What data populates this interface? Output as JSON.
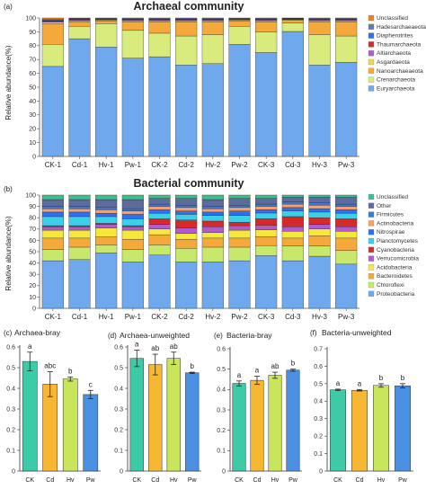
{
  "chart_data": [
    {
      "panel": "(a)",
      "type": "stacked_bar",
      "title": "Archaeal community",
      "ylabel": "Relative abundance(%)",
      "ylim": [
        0,
        100
      ],
      "yticks": [
        0,
        10,
        20,
        30,
        40,
        50,
        60,
        70,
        80,
        90,
        100
      ],
      "categories": [
        "CK-1",
        "Cd-1",
        "Hv-1",
        "Pw-1",
        "CK-2",
        "Cd-2",
        "Hv-2",
        "Pw-2",
        "CK-3",
        "Cd-3",
        "Hv-3",
        "Pw-3"
      ],
      "series": [
        {
          "name": "Euryarchaeota",
          "color": "#6fa8ec",
          "values": [
            65,
            85,
            79,
            71,
            72,
            66,
            67,
            81,
            75,
            90,
            66,
            68
          ]
        },
        {
          "name": "Crenarchaeota",
          "color": "#d8eb7c",
          "values": [
            16,
            9,
            17,
            20,
            17,
            21,
            21,
            13,
            15,
            6,
            22,
            19
          ]
        },
        {
          "name": "Nanoarchaeaeota",
          "color": "#f5a93a",
          "values": [
            15,
            3,
            2,
            6,
            8,
            10,
            9,
            4,
            7,
            2,
            9,
            10
          ]
        },
        {
          "name": "Asgardaeota",
          "color": "#f0d84a",
          "values": [
            1,
            1,
            0.5,
            1,
            1,
            1,
            1,
            0.5,
            1,
            0.5,
            1,
            1
          ]
        },
        {
          "name": "Altiarchaeota",
          "color": "#b05ad0",
          "values": [
            0.5,
            0.5,
            0.3,
            0.5,
            0.5,
            0.5,
            0.5,
            0.3,
            0.5,
            0.3,
            0.5,
            0.5
          ]
        },
        {
          "name": "Thaumarchaeota",
          "color": "#d62a2a",
          "values": [
            0.5,
            0.5,
            0.4,
            0.5,
            0.5,
            0.5,
            0.5,
            0.4,
            0.5,
            0.3,
            0.5,
            0.5
          ]
        },
        {
          "name": "Diapherotrites",
          "color": "#2f6ff0",
          "values": [
            0.3,
            0.3,
            0.2,
            0.3,
            0.3,
            0.3,
            0.3,
            0.2,
            0.3,
            0.2,
            0.3,
            0.3
          ]
        },
        {
          "name": "Hadesarchaeaeota",
          "color": "#5b7fb0",
          "values": [
            0.5,
            0.4,
            0.4,
            0.5,
            0.5,
            0.5,
            0.5,
            0.4,
            0.5,
            0.3,
            0.5,
            0.5
          ]
        },
        {
          "name": "Unclassified",
          "color": "#f08020",
          "values": [
            1.2,
            0.3,
            0.2,
            0.2,
            0.2,
            0.2,
            0.2,
            0.2,
            0.2,
            0.1,
            0.2,
            0.2
          ]
        }
      ],
      "legend": [
        "Unclassified",
        "Hadesarchaeaeota",
        "Diapherotrites",
        "Thaumarchaeota",
        "Altiarchaeota",
        "Asgardaeota",
        "Nanoarchaeaeota",
        "Crenarchaeota",
        "Euryarchaeota"
      ]
    },
    {
      "panel": "(b)",
      "type": "stacked_bar",
      "title": "Bacterial community",
      "ylabel": "Relative abundance(%)",
      "ylim": [
        0,
        100
      ],
      "yticks": [
        0,
        10,
        20,
        30,
        40,
        50,
        60,
        70,
        80,
        90,
        100
      ],
      "categories": [
        "CK-1",
        "Cd-1",
        "Hv-1",
        "Pw-1",
        "CK-2",
        "Cd-2",
        "Hv-2",
        "Pw-2",
        "CK-3",
        "Cd-3",
        "Hv-3",
        "Pw-3"
      ],
      "series": [
        {
          "name": "Proteobacteria",
          "color": "#6fa8ec",
          "values": [
            42,
            43,
            49,
            41,
            47,
            41,
            41,
            42,
            47,
            42,
            46,
            39
          ]
        },
        {
          "name": "Chloroflexi",
          "color": "#c7e86a",
          "values": [
            10,
            11,
            7,
            11,
            9,
            12,
            13,
            12,
            9,
            13,
            9,
            12
          ]
        },
        {
          "name": "Bacteroidetes",
          "color": "#f5a93a",
          "values": [
            10,
            8,
            7,
            9,
            9,
            8,
            8,
            8,
            8,
            7,
            9,
            11
          ]
        },
        {
          "name": "Acidobacteria",
          "color": "#f5e83a",
          "values": [
            7,
            7,
            8,
            8,
            5,
            5,
            5,
            7,
            6,
            6,
            6,
            6
          ]
        },
        {
          "name": "Verrucomicrobia",
          "color": "#b05ad0",
          "values": [
            3,
            3,
            3,
            3,
            4,
            5,
            5,
            4,
            4,
            4,
            4,
            4
          ]
        },
        {
          "name": "Cyanobacteria",
          "color": "#d62a2a",
          "values": [
            1,
            1,
            1,
            1,
            5,
            7,
            5,
            3,
            6,
            9,
            6,
            7
          ]
        },
        {
          "name": "Planctomycetes",
          "color": "#3bd0e8",
          "values": [
            8,
            8,
            6,
            6,
            5,
            5,
            5,
            6,
            5,
            5,
            5,
            5
          ]
        },
        {
          "name": "Nitrospirae",
          "color": "#2f6ff0",
          "values": [
            4,
            4,
            3,
            4,
            3,
            3,
            3,
            4,
            3,
            3,
            3,
            3
          ]
        },
        {
          "name": "Actinobacteria",
          "color": "#f7a06a",
          "values": [
            3,
            3,
            3,
            3,
            3,
            3,
            3,
            3,
            3,
            3,
            3,
            3
          ]
        },
        {
          "name": "Firmicutes",
          "color": "#3b78d8",
          "values": [
            2,
            2,
            2,
            2,
            2,
            2,
            2,
            2,
            2,
            2,
            2,
            2
          ]
        },
        {
          "name": "Other",
          "color": "#5d6a9c",
          "values": [
            6,
            6,
            7,
            8,
            5,
            6,
            6,
            6,
            5,
            4,
            5,
            6
          ]
        },
        {
          "name": "Unclassified",
          "color": "#3bbf8c",
          "values": [
            4,
            4,
            4,
            4,
            3,
            3,
            4,
            3,
            3,
            2,
            2,
            2
          ]
        }
      ],
      "legend": [
        "Unclassified",
        "Other",
        "Firmicutes",
        "Actinobacteria",
        "Nitrospirae",
        "Planctomycetes",
        "Cyanobacteria",
        "Verrucomicrobia",
        "Acidobacteria",
        "Bacteroidetes",
        "Chloroflexi",
        "Proteobacteria"
      ]
    },
    {
      "panel": "(c)",
      "type": "bar",
      "title": "Archaea-bray",
      "categories": [
        "CK",
        "Cd",
        "Hv",
        "Pw"
      ],
      "colors": [
        "#3dcaa6",
        "#f7b733",
        "#c9e55a",
        "#4a90e2"
      ],
      "values": [
        0.53,
        0.42,
        0.445,
        0.37
      ],
      "errors": [
        0.045,
        0.06,
        0.01,
        0.02
      ],
      "letters": [
        "a",
        "abc",
        "b",
        "c"
      ],
      "ylim": [
        0,
        0.6
      ],
      "yticks": [
        "0",
        "0.1",
        "0.2",
        "0.3",
        "0.4",
        "0.5",
        "0.6"
      ],
      "ytick_values": [
        0,
        0.1,
        0.2,
        0.3,
        0.4,
        0.5,
        0.6
      ]
    },
    {
      "panel": "(d)",
      "type": "bar",
      "title": "Archaea-unweighted",
      "categories": [
        "CK",
        "Cd",
        "Hv",
        "Pw"
      ],
      "colors": [
        "#3dcaa6",
        "#f7b733",
        "#c9e55a",
        "#4a90e2"
      ],
      "values": [
        0.545,
        0.515,
        0.545,
        0.475
      ],
      "errors": [
        0.04,
        0.05,
        0.03,
        0.003
      ],
      "letters": [
        "a",
        "ab",
        "ab",
        "b"
      ],
      "ylim": [
        0,
        0.6
      ],
      "yticks": [
        "0",
        "0.1",
        "0.2",
        "0.3",
        "0.4",
        "0.5",
        "0.6"
      ],
      "ytick_values": [
        0,
        0.1,
        0.2,
        0.3,
        0.4,
        0.5,
        0.6
      ]
    },
    {
      "panel": "(e)",
      "type": "bar",
      "title": "Bacteria-bray",
      "categories": [
        "CK",
        "Cd",
        "Hv",
        "Pw"
      ],
      "colors": [
        "#3dcaa6",
        "#f7b733",
        "#c9e55a",
        "#4a90e2"
      ],
      "values": [
        0.43,
        0.445,
        0.47,
        0.495
      ],
      "errors": [
        0.012,
        0.02,
        0.015,
        0.005
      ],
      "letters": [
        "a",
        "a",
        "ab",
        "b"
      ],
      "ylim": [
        0,
        0.6
      ],
      "yticks": [
        "0",
        "0.1",
        "0.2",
        "0.3",
        "0.4",
        "0.5",
        "0.6"
      ],
      "ytick_values": [
        0,
        0.1,
        0.2,
        0.3,
        0.4,
        0.5,
        0.6
      ]
    },
    {
      "panel": "(f)",
      "type": "bar",
      "title": "Bacteria-unweighted",
      "categories": [
        "CK",
        "Cd",
        "Hv",
        "Pw"
      ],
      "colors": [
        "#3dcaa6",
        "#f7b733",
        "#c9e55a",
        "#4a90e2"
      ],
      "values": [
        0.465,
        0.462,
        0.49,
        0.488
      ],
      "errors": [
        0.004,
        0.004,
        0.01,
        0.012
      ],
      "letters": [
        "a",
        "a",
        "b",
        "b"
      ],
      "ylim": [
        0,
        0.7
      ],
      "yticks": [
        "0",
        "0.1",
        "0.2",
        "0.3",
        "0.4",
        "0.5",
        "0.6",
        "0.7"
      ],
      "ytick_values": [
        0,
        0.1,
        0.2,
        0.3,
        0.4,
        0.5,
        0.6,
        0.7
      ]
    }
  ]
}
